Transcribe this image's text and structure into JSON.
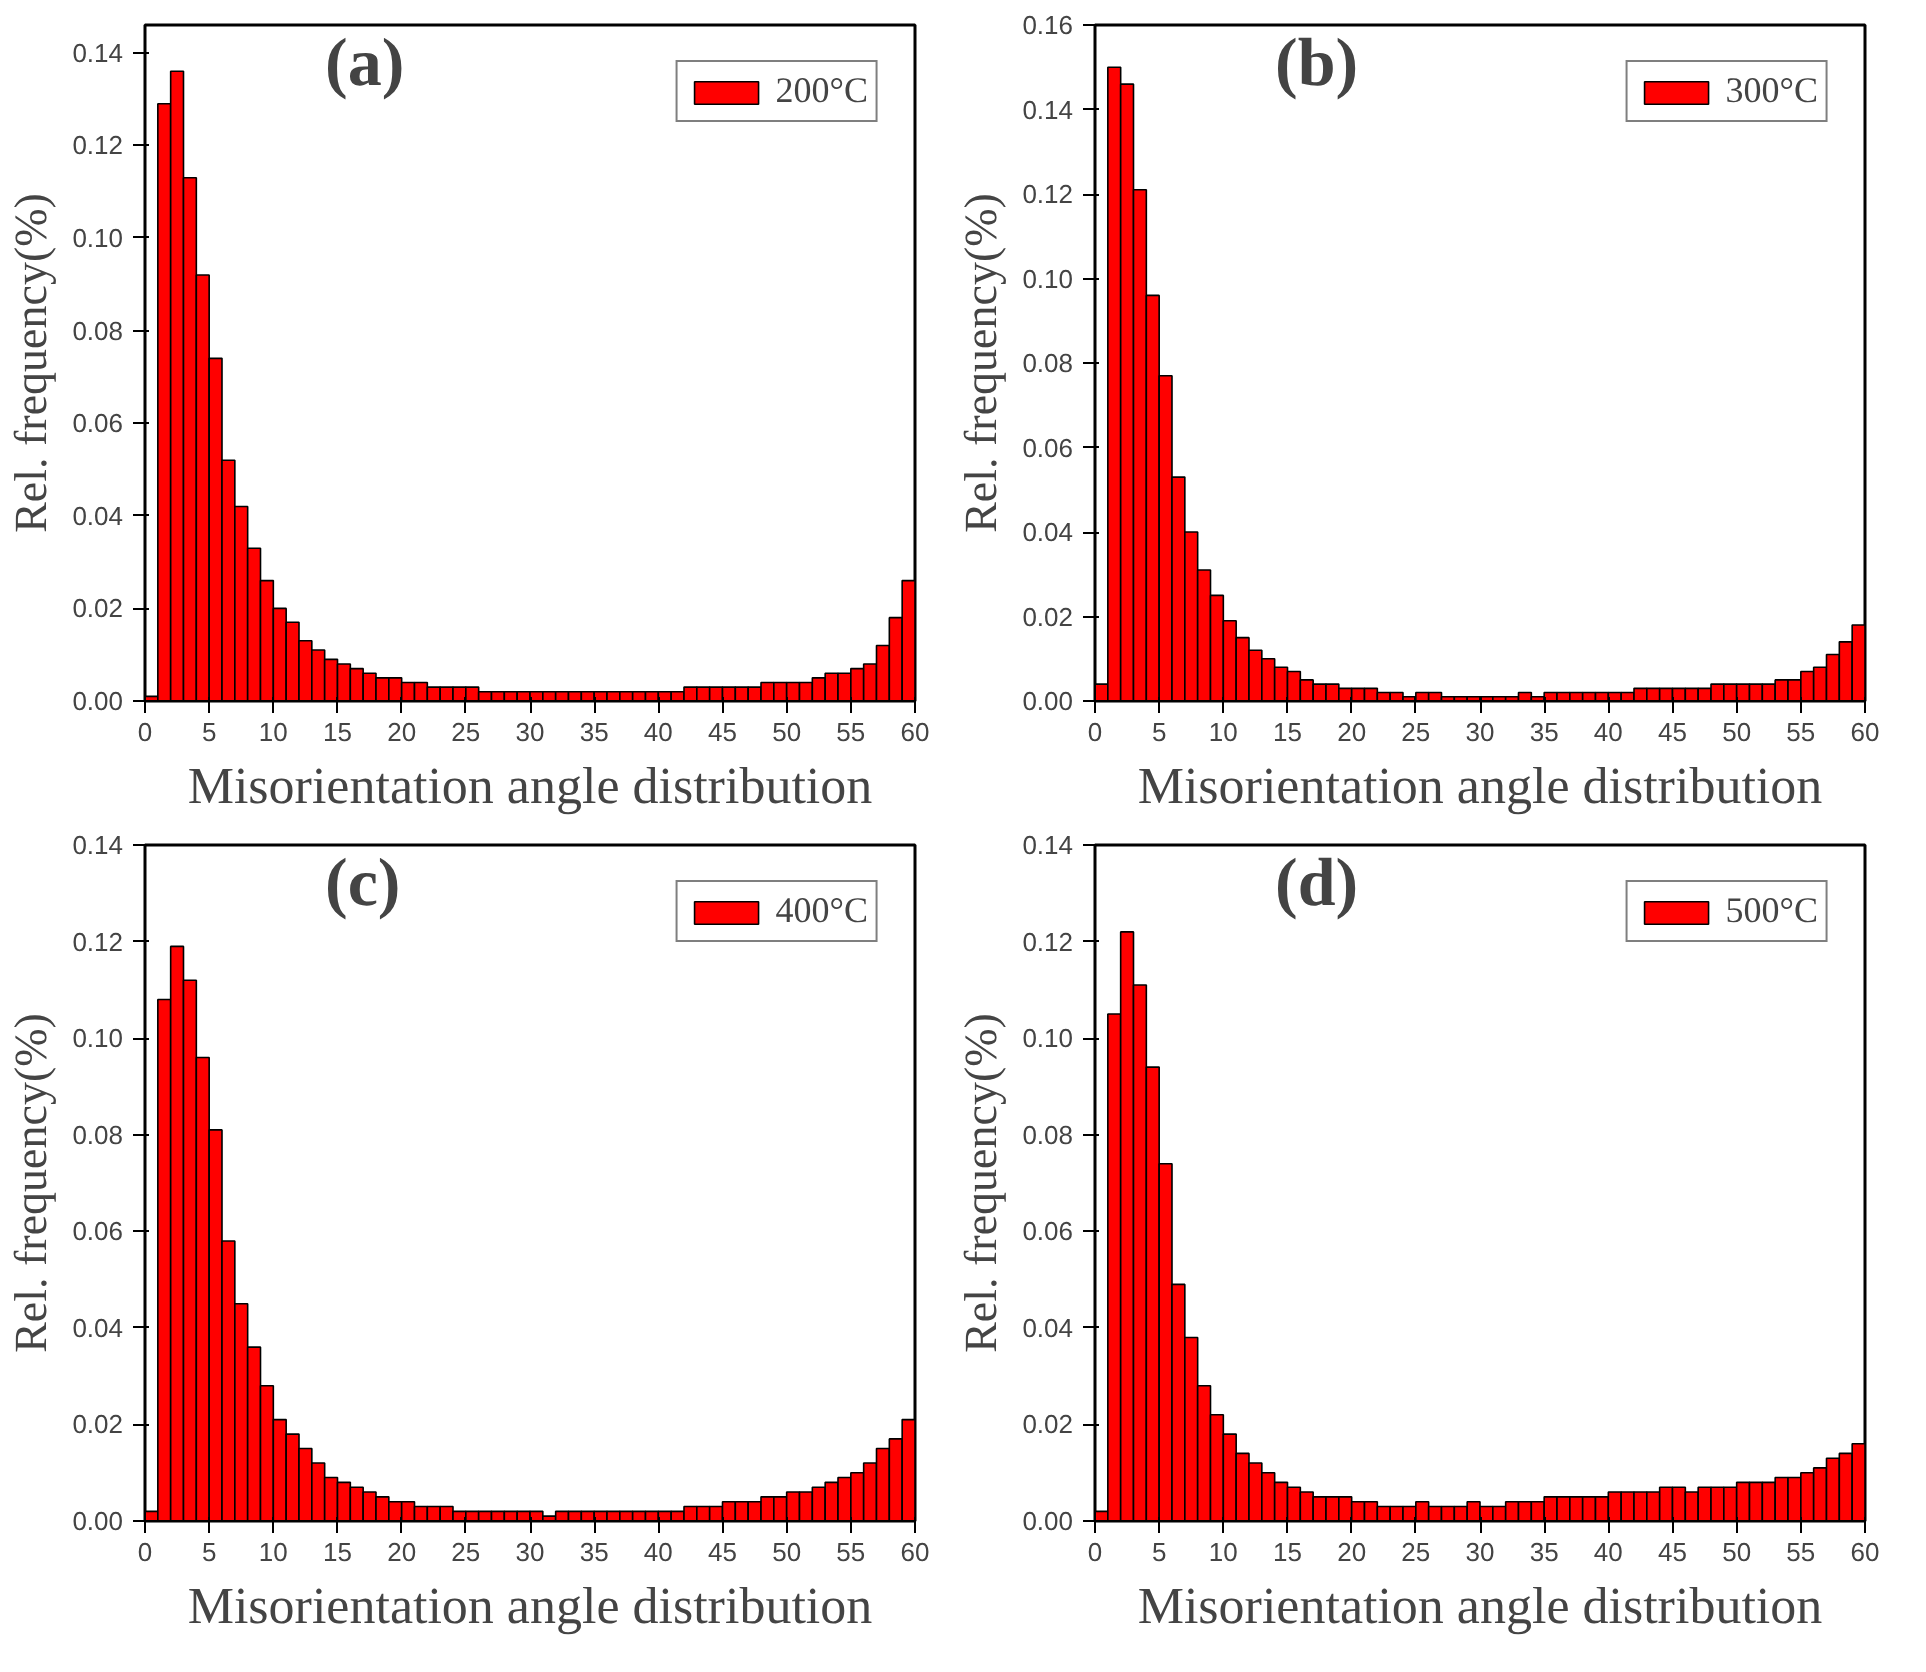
{
  "chart_data": [
    {
      "type": "histogram",
      "annotations": [
        "(a)"
      ],
      "xlabel": "Misorientation angle distribution",
      "ylabel": "Rel. frequency(%)",
      "legend": "top right",
      "bins": [
        0,
        1,
        2,
        3,
        4,
        5,
        6,
        7,
        8,
        9,
        10,
        11,
        12,
        13,
        14,
        15,
        16,
        17,
        18,
        19,
        20,
        21,
        22,
        23,
        24,
        25,
        26,
        27,
        28,
        29,
        30,
        31,
        32,
        33,
        34,
        35,
        36,
        37,
        38,
        39,
        40,
        41,
        42,
        43,
        44,
        45,
        46,
        47,
        48,
        49,
        50,
        51,
        52,
        53,
        54,
        55,
        56,
        57,
        58,
        59,
        60
      ],
      "xlim": [
        0,
        60
      ],
      "xticks": [
        0,
        5,
        10,
        15,
        20,
        25,
        30,
        35,
        40,
        45,
        50,
        55,
        60
      ],
      "ylim": [
        0,
        0.146
      ],
      "yticks": [
        {
          "value": 0,
          "label": "0.00"
        },
        {
          "value": 0.02,
          "label": "0.02"
        },
        {
          "value": 0.04,
          "label": "0.04"
        },
        {
          "value": 0.06,
          "label": "0.06"
        },
        {
          "value": 0.08,
          "label": "0.08"
        },
        {
          "value": 0.1,
          "label": "0.10"
        },
        {
          "value": 0.12,
          "label": "0.12"
        },
        {
          "value": 0.14,
          "label": "0.14"
        }
      ],
      "series": [
        {
          "name": "200°C",
          "color": "#ff0000",
          "values": [
            0.001,
            0.129,
            0.136,
            0.113,
            0.092,
            0.074,
            0.052,
            0.042,
            0.033,
            0.026,
            0.02,
            0.017,
            0.013,
            0.011,
            0.009,
            0.008,
            0.007,
            0.006,
            0.005,
            0.005,
            0.004,
            0.004,
            0.003,
            0.003,
            0.003,
            0.003,
            0.002,
            0.002,
            0.002,
            0.002,
            0.002,
            0.002,
            0.002,
            0.002,
            0.002,
            0.002,
            0.002,
            0.002,
            0.002,
            0.002,
            0.002,
            0.002,
            0.003,
            0.003,
            0.003,
            0.003,
            0.003,
            0.003,
            0.004,
            0.004,
            0.004,
            0.004,
            0.005,
            0.006,
            0.006,
            0.007,
            0.008,
            0.012,
            0.018,
            0.026
          ]
        }
      ]
    },
    {
      "type": "histogram",
      "annotations": [
        "(b)"
      ],
      "xlabel": "Misorientation angle distribution",
      "ylabel": "Rel. frequency(%)",
      "legend": "top right",
      "bins": [
        0,
        1,
        2,
        3,
        4,
        5,
        6,
        7,
        8,
        9,
        10,
        11,
        12,
        13,
        14,
        15,
        16,
        17,
        18,
        19,
        20,
        21,
        22,
        23,
        24,
        25,
        26,
        27,
        28,
        29,
        30,
        31,
        32,
        33,
        34,
        35,
        36,
        37,
        38,
        39,
        40,
        41,
        42,
        43,
        44,
        45,
        46,
        47,
        48,
        49,
        50,
        51,
        52,
        53,
        54,
        55,
        56,
        57,
        58,
        59,
        60
      ],
      "xlim": [
        0,
        60
      ],
      "xticks": [
        0,
        5,
        10,
        15,
        20,
        25,
        30,
        35,
        40,
        45,
        50,
        55,
        60
      ],
      "ylim": [
        0,
        0.16
      ],
      "yticks": [
        {
          "value": 0,
          "label": "0.00"
        },
        {
          "value": 0.02,
          "label": "0.02"
        },
        {
          "value": 0.04,
          "label": "0.04"
        },
        {
          "value": 0.06,
          "label": "0.06"
        },
        {
          "value": 0.08,
          "label": "0.08"
        },
        {
          "value": 0.1,
          "label": "0.10"
        },
        {
          "value": 0.12,
          "label": "0.12"
        },
        {
          "value": 0.14,
          "label": "0.14"
        },
        {
          "value": 0.16,
          "label": "0.16"
        }
      ],
      "series": [
        {
          "name": "300°C",
          "color": "#ff0000",
          "values": [
            0.004,
            0.15,
            0.146,
            0.121,
            0.096,
            0.077,
            0.053,
            0.04,
            0.031,
            0.025,
            0.019,
            0.015,
            0.012,
            0.01,
            0.008,
            0.007,
            0.005,
            0.004,
            0.004,
            0.003,
            0.003,
            0.003,
            0.002,
            0.002,
            0.001,
            0.002,
            0.002,
            0.001,
            0.001,
            0.001,
            0.001,
            0.001,
            0.001,
            0.002,
            0.001,
            0.002,
            0.002,
            0.002,
            0.002,
            0.002,
            0.002,
            0.002,
            0.003,
            0.003,
            0.003,
            0.003,
            0.003,
            0.003,
            0.004,
            0.004,
            0.004,
            0.004,
            0.004,
            0.005,
            0.005,
            0.007,
            0.008,
            0.011,
            0.014,
            0.018
          ]
        }
      ]
    },
    {
      "type": "histogram",
      "annotations": [
        "(c)"
      ],
      "xlabel": "Misorientation angle distribution",
      "ylabel": "Rel. frequency(%)",
      "legend": "top right",
      "bins": [
        0,
        1,
        2,
        3,
        4,
        5,
        6,
        7,
        8,
        9,
        10,
        11,
        12,
        13,
        14,
        15,
        16,
        17,
        18,
        19,
        20,
        21,
        22,
        23,
        24,
        25,
        26,
        27,
        28,
        29,
        30,
        31,
        32,
        33,
        34,
        35,
        36,
        37,
        38,
        39,
        40,
        41,
        42,
        43,
        44,
        45,
        46,
        47,
        48,
        49,
        50,
        51,
        52,
        53,
        54,
        55,
        56,
        57,
        58,
        59,
        60
      ],
      "xlim": [
        0,
        60
      ],
      "xticks": [
        0,
        5,
        10,
        15,
        20,
        25,
        30,
        35,
        40,
        45,
        50,
        55,
        60
      ],
      "ylim": [
        0,
        0.14
      ],
      "yticks": [
        {
          "value": 0,
          "label": "0.00"
        },
        {
          "value": 0.02,
          "label": "0.02"
        },
        {
          "value": 0.04,
          "label": "0.04"
        },
        {
          "value": 0.06,
          "label": "0.06"
        },
        {
          "value": 0.08,
          "label": "0.08"
        },
        {
          "value": 0.1,
          "label": "0.10"
        },
        {
          "value": 0.12,
          "label": "0.12"
        },
        {
          "value": 0.14,
          "label": "0.14"
        }
      ],
      "series": [
        {
          "name": "400°C",
          "color": "#ff0000",
          "values": [
            0.002,
            0.108,
            0.119,
            0.112,
            0.096,
            0.081,
            0.058,
            0.045,
            0.036,
            0.028,
            0.021,
            0.018,
            0.015,
            0.012,
            0.009,
            0.008,
            0.007,
            0.006,
            0.005,
            0.004,
            0.004,
            0.003,
            0.003,
            0.003,
            0.002,
            0.002,
            0.002,
            0.002,
            0.002,
            0.002,
            0.002,
            0.001,
            0.002,
            0.002,
            0.002,
            0.002,
            0.002,
            0.002,
            0.002,
            0.002,
            0.002,
            0.002,
            0.003,
            0.003,
            0.003,
            0.004,
            0.004,
            0.004,
            0.005,
            0.005,
            0.006,
            0.006,
            0.007,
            0.008,
            0.009,
            0.01,
            0.012,
            0.015,
            0.017,
            0.021
          ]
        }
      ]
    },
    {
      "type": "histogram",
      "annotations": [
        "(d)"
      ],
      "xlabel": "Misorientation angle distribution",
      "ylabel": "Rel. frequency(%)",
      "legend": "top right",
      "bins": [
        0,
        1,
        2,
        3,
        4,
        5,
        6,
        7,
        8,
        9,
        10,
        11,
        12,
        13,
        14,
        15,
        16,
        17,
        18,
        19,
        20,
        21,
        22,
        23,
        24,
        25,
        26,
        27,
        28,
        29,
        30,
        31,
        32,
        33,
        34,
        35,
        36,
        37,
        38,
        39,
        40,
        41,
        42,
        43,
        44,
        45,
        46,
        47,
        48,
        49,
        50,
        51,
        52,
        53,
        54,
        55,
        56,
        57,
        58,
        59,
        60
      ],
      "xlim": [
        0,
        60
      ],
      "xticks": [
        0,
        5,
        10,
        15,
        20,
        25,
        30,
        35,
        40,
        45,
        50,
        55,
        60
      ],
      "ylim": [
        0,
        0.14
      ],
      "yticks": [
        {
          "value": 0,
          "label": "0.00"
        },
        {
          "value": 0.02,
          "label": "0.02"
        },
        {
          "value": 0.04,
          "label": "0.04"
        },
        {
          "value": 0.06,
          "label": "0.06"
        },
        {
          "value": 0.08,
          "label": "0.08"
        },
        {
          "value": 0.1,
          "label": "0.10"
        },
        {
          "value": 0.12,
          "label": "0.12"
        },
        {
          "value": 0.14,
          "label": "0.14"
        }
      ],
      "series": [
        {
          "name": "500°C",
          "color": "#ff0000",
          "values": [
            0.002,
            0.105,
            0.122,
            0.111,
            0.094,
            0.074,
            0.049,
            0.038,
            0.028,
            0.022,
            0.018,
            0.014,
            0.012,
            0.01,
            0.008,
            0.007,
            0.006,
            0.005,
            0.005,
            0.005,
            0.004,
            0.004,
            0.003,
            0.003,
            0.003,
            0.004,
            0.003,
            0.003,
            0.003,
            0.004,
            0.003,
            0.003,
            0.004,
            0.004,
            0.004,
            0.005,
            0.005,
            0.005,
            0.005,
            0.005,
            0.006,
            0.006,
            0.006,
            0.006,
            0.007,
            0.007,
            0.006,
            0.007,
            0.007,
            0.007,
            0.008,
            0.008,
            0.008,
            0.009,
            0.009,
            0.01,
            0.011,
            0.013,
            0.014,
            0.016
          ]
        }
      ]
    }
  ]
}
